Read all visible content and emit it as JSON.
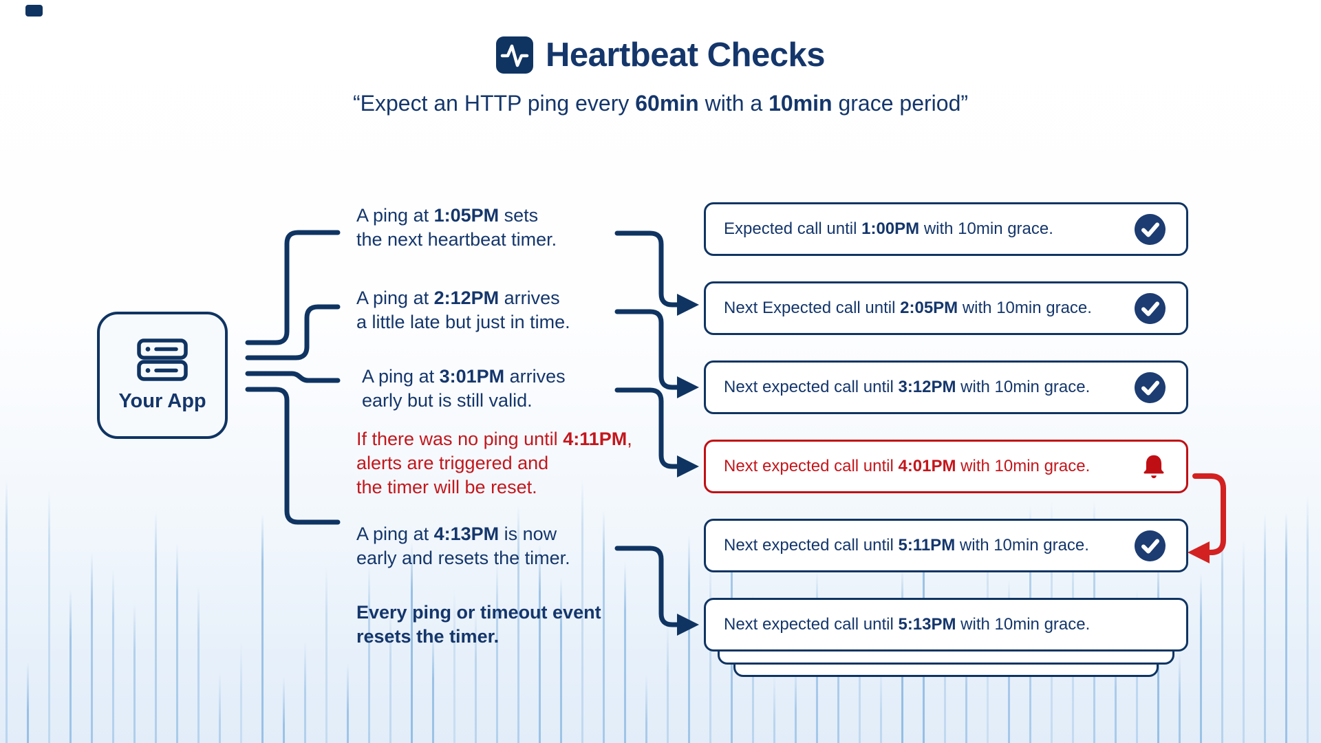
{
  "colors": {
    "navy": "#14366b",
    "line": "#0f3462",
    "red": "#c3161c",
    "red-line": "#c00f14",
    "red-arrow": "#d32121",
    "badge": "#1c3c72",
    "bar": "#5b9bd5",
    "node-fill": "#f7fafd"
  },
  "icons": {
    "title": "activity-pulse-icon",
    "app": "server-icon",
    "ok": "check-circle-icon",
    "alert": "bell-icon"
  },
  "header": {
    "title": "Heartbeat Checks",
    "subtitle": [
      [
        "“Expect an HTTP ping every ",
        false
      ],
      [
        "60min",
        true
      ],
      [
        " with a ",
        false
      ],
      [
        "10min",
        true
      ],
      [
        " grace period”",
        false
      ]
    ]
  },
  "app_node": {
    "label": "Your App"
  },
  "annotations": [
    {
      "tone": "navy",
      "segments": [
        [
          "A ping at ",
          false
        ],
        [
          "1:05PM",
          true
        ],
        [
          " sets\nthe next heartbeat timer.",
          false
        ]
      ]
    },
    {
      "tone": "navy",
      "segments": [
        [
          "A ping at ",
          false
        ],
        [
          "2:12PM",
          true
        ],
        [
          " arrives\na little late but just in time.",
          false
        ]
      ]
    },
    {
      "tone": "navy",
      "segments": [
        [
          "A ping at ",
          false
        ],
        [
          "3:01PM",
          true
        ],
        [
          " arrives\nearly but is still valid.",
          false
        ]
      ]
    },
    {
      "tone": "red",
      "segments": [
        [
          "If there was no ping until ",
          false
        ],
        [
          "4:11PM",
          true
        ],
        [
          ",\nalerts are triggered and\nthe timer will be reset.",
          false
        ]
      ]
    },
    {
      "tone": "navy",
      "segments": [
        [
          "A ping at ",
          false
        ],
        [
          "4:13PM",
          true
        ],
        [
          " is now\nearly and resets the timer.",
          false
        ]
      ]
    },
    {
      "tone": "navy-bold",
      "segments": [
        [
          "Every ping or timeout event\nresets the timer.",
          true
        ]
      ]
    }
  ],
  "timeline": [
    {
      "status": "ok",
      "segments": [
        [
          "Expected call until ",
          false
        ],
        [
          "1:00PM",
          true
        ],
        [
          " with 10min grace.",
          false
        ]
      ]
    },
    {
      "status": "ok",
      "segments": [
        [
          "Next Expected call until ",
          false
        ],
        [
          "2:05PM",
          true
        ],
        [
          " with 10min grace.",
          false
        ]
      ]
    },
    {
      "status": "ok",
      "segments": [
        [
          "Next expected call until ",
          false
        ],
        [
          "3:12PM",
          true
        ],
        [
          " with 10min grace.",
          false
        ]
      ]
    },
    {
      "status": "alert",
      "segments": [
        [
          "Next expected call until ",
          false
        ],
        [
          "4:01PM",
          true
        ],
        [
          " with 10min grace.",
          false
        ]
      ]
    },
    {
      "status": "ok",
      "segments": [
        [
          "Next expected call until ",
          false
        ],
        [
          "5:11PM",
          true
        ],
        [
          " with 10min grace.",
          false
        ]
      ]
    },
    {
      "status": "none",
      "segments": [
        [
          "Next expected call until ",
          false
        ],
        [
          "5:13PM",
          true
        ],
        [
          " with 10min grace.",
          false
        ]
      ]
    }
  ]
}
